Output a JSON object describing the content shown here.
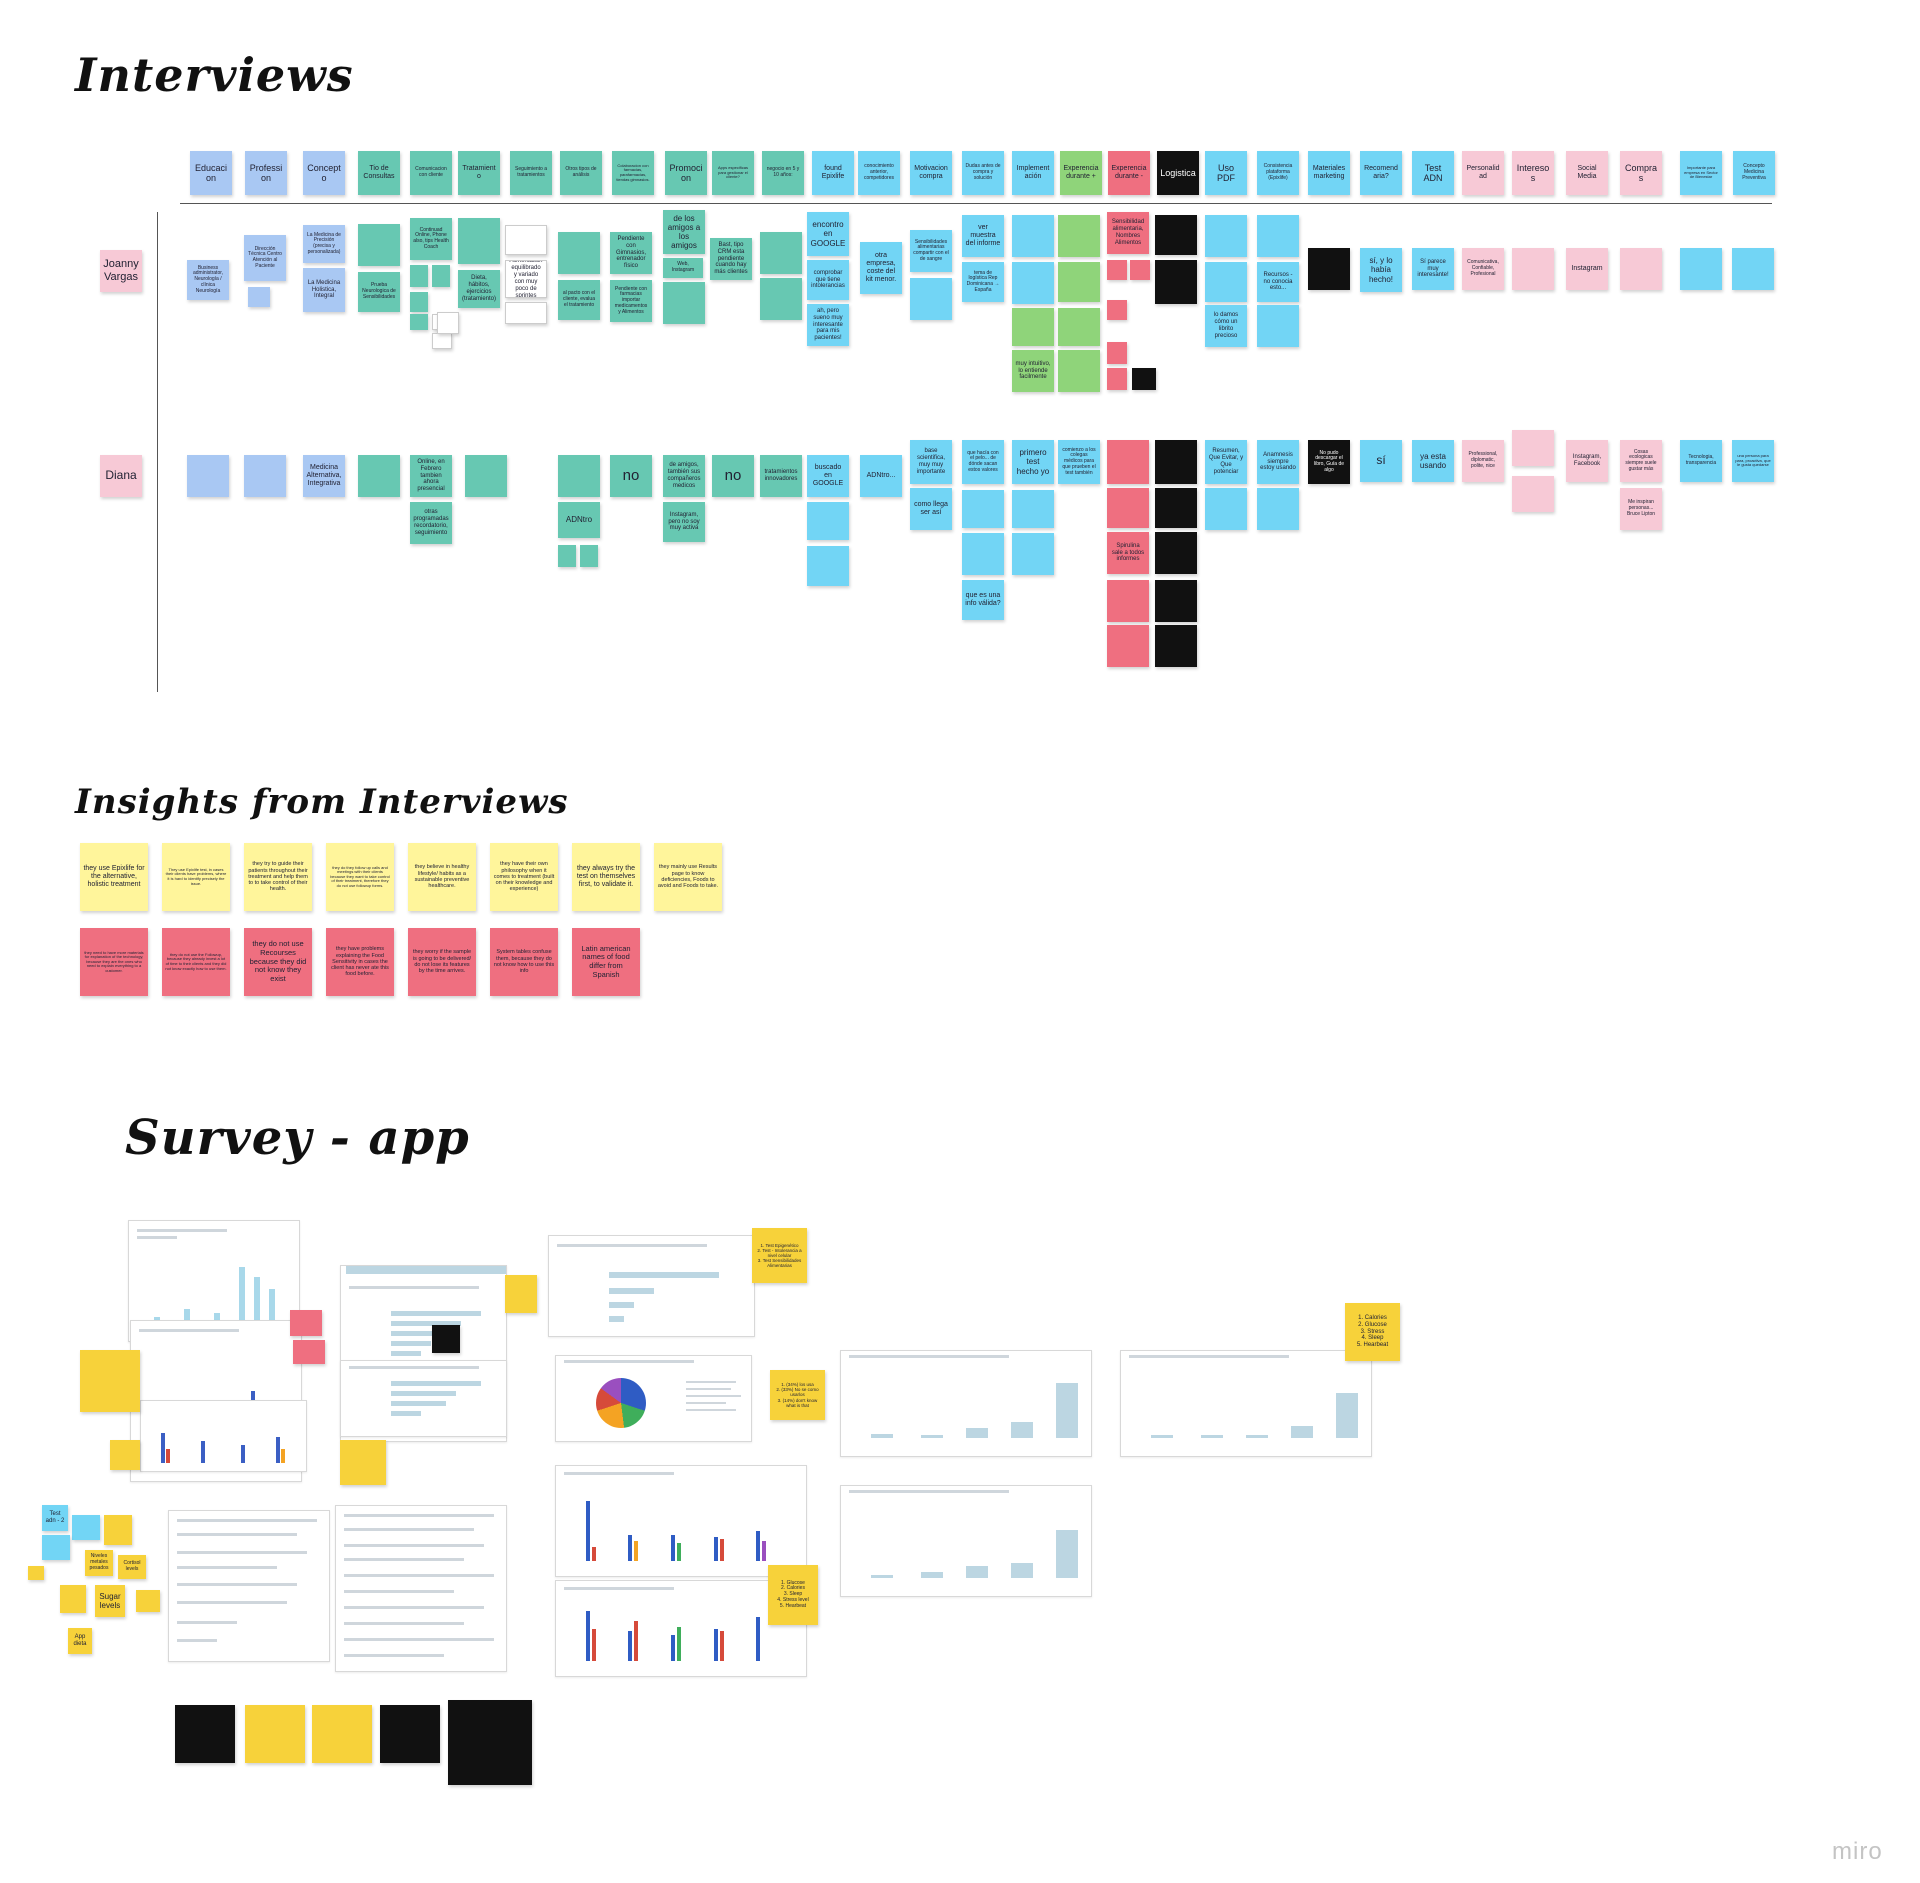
{
  "titles": {
    "interviews": "Interviews",
    "insights": "Insights from Interviews",
    "survey": "Survey - app"
  },
  "headers": [
    "Educacion",
    "Profession",
    "Concepto",
    "Tio de Consultas",
    "Comunicacion con cliente",
    "Tratamiento",
    "Seguimiento a tratamientos",
    "Otros tipos de análisis",
    "Colaboracion con farmacias, parafarmacias, tiendas gimnasios.",
    "Promocion",
    "Apps especificas para gestionar el cliente?",
    "negocio en 5 y 10 años:",
    "found Epixlife",
    "conocimiento anterior, competidores",
    "Motivacion compra",
    "Dudas antes de compra y solución",
    "Implementación",
    "Experencia durante +",
    "Experencia durante -",
    "Logistica",
    "Uso PDF",
    "Consistencia plataforma (Epixlife)",
    "Materiales marketing",
    "Recomendaria?",
    "Test ADN",
    "Personalidad",
    "Interesos",
    "Social Media",
    "Compras",
    "Importante para empresa en Sector de Bienestar",
    "Concepto Medicina Preventiva"
  ],
  "people": [
    "Joanny Vargas",
    "Diana"
  ],
  "joanny_notes": {
    "educacion": "Business administrator, Neurología / clínica Neurología",
    "profession": "Dirección Técnica Centro Atención al Paciente",
    "concepto_1": "La Medicina de Precisión (precisa y personalizada)",
    "concepto_2": "La Medicina Holistica, Integral",
    "consultas": "Prueba Neurologica de Sensibilidades",
    "comunicacion": "Continuad Online, Phone also, tips Health Coach",
    "tratamiento": "Dieta, hábitos, ejercicios (tratamiento)",
    "seguimiento": "Alimentation equilibrado y variado con muy poco de sprintes",
    "otros": "al pacto con el cliente, evalua el tratamiento",
    "colaboracion": "Pendiente con Gimnasios, entrenador físico",
    "colaboracion_2": "Pendiente con farmacias importar medicamentos y Alimentos",
    "promocion": "de los amigos a los amigos",
    "promocion_2": "Web, Instagram",
    "apps": "Bast, tipo CRM esta pendiente cuando hay más clientes",
    "found": "encontro en GOOGLE",
    "found_2": "comprobar que tiene intolerancias",
    "found_3": "ah, pero sueno muy interesante para mis pacientes!",
    "conocimiento": "otra empresa, coste del kit menor.",
    "motivacion": "Sensibilidades alimentarias compartir con el de sangre",
    "dudas": "ver muestra del informe",
    "dudas_2": "tema de logística Rep Dominicana → España",
    "exp_plus": "muy intuitivo, lo entiende facilmente",
    "exp_minus": "Sensibilidad alimentaria, Nombres Alimentos",
    "uso_pdf": "lo damos cómo un librito precioso",
    "uso_pdf_2": "Recursos - no conocia esto...",
    "recomendaria": "sí, y lo había hecho!",
    "test_adn": "Sí parece muy interesante!",
    "personalidad": "Comunicativa, Confiable, Profesional",
    "social": "Instagram"
  },
  "diana_notes": {
    "comunicacion": "Online, en Febrero tambien ahora presencial",
    "comunicacion_2": "otras programadas recordatorio, seguimiento",
    "otros": "ADNtro",
    "colaboracion": "no",
    "promocion": "de amigos, también sus compañeros medicos",
    "promocion_2": "Instagram, pero no soy muy activa",
    "apps": "no",
    "negocio": "tratamientos innovadores",
    "found": "buscado en GOOGLE",
    "conocimiento": "ADNtro...",
    "motivacion": "base scientifica, muy muy importante",
    "motivacion_2": "como llega ser así",
    "dudas": "que hacía con el pelo... de dónde sacan estos valores",
    "dudas_2": "que es una info válida?",
    "implementacion": "primero test hecho yo",
    "exp_plus": "comienzo a los colegas médicos para que prueben el test también",
    "exp_minus": "Spirulina sale a todos informes",
    "uso_pdf": "Resumen, Que Evitar, y Que potenciar",
    "consistencia": "Anamnesis siempre estoy usando",
    "materiales": "No pudo descargar el libro, Guía de algo",
    "recomendaria": "sí",
    "test_adn": "ya esta usando",
    "personalidad": "Professional, diplomatic, polite, nice",
    "social": "Instagram, Facebook",
    "compras": "Cosas ecologicas siempre suele gustar más",
    "compras_2": "Me inspiran personas... Bruce Lipton",
    "importante": "Tecnologia, transparencia",
    "concepto": "una persona para para, proactiva, que le gusta quedarse"
  },
  "insights_positive": [
    "they use Epixlife for the alternative, holistic treatment",
    "They use Epixlife test, in cases their clients have problems, where it is hard to identify precisely the issue.",
    "they try to guide their patients throughout their treatment and help them to to take control of their health.",
    "they do they follow up calls and meetings with their clients because they want to take control of their treatment, therefore they do not use followup forms.",
    "they believe in healthy lifestyle/ habits as a sustainable preventive healthcare.",
    "they have their own philosophy when it comes to treatment (built on their knowledge and experience)",
    "they always try the test on themselves first, to validate it.",
    "they mainly use Results page to know deficiencies, Foods to avoid and Foods to take."
  ],
  "insights_negative": [
    "they need to have more materials for explanation of the technology, because they are the ones who need to explain everything to a customer.",
    "they do not use the Followup, because they already invest a lot of time to their clients and they did not know exactly how to use them.",
    "they do not use Recourses because they did not know they exist",
    "they have problems explaining the Food Sensitivity in cases the client has never ate this food before.",
    "they worry if the sample is going to be delivered/ do not lose its features by the time arrives.",
    "System tables confuse them, because they do not know how to use this info",
    "Latin american names of food differ from Spanish"
  ],
  "survey_notes": {
    "note_1": "1. Test Epigenético\n2. Test - Intolerancia a nivel celular\n3. Test Sensibilidades Alimentarias",
    "note_2": "1. (34%) los usa\n2. (33%) No se como usarlos\n3. (14%) don't know what is that",
    "note_3": "1. Calories\n2. Glucose\n3. Stress\n4. Sleep\n5. Hearbeat",
    "note_4": "1. Glucose\n2. Calories\n3. Sleep\n4. Stress level\n5. Hearbeat",
    "sugar": "Sugar levels",
    "app": "App dieta",
    "test": "Test adn - 2",
    "niveles": "Niveles metales pesados",
    "cortisol": "Cortisol levels"
  },
  "watermark": "miro",
  "colors": {
    "blue": "#72d5f5",
    "teal": "#67c8b2",
    "green": "#8fd47a",
    "red": "#ef6f80",
    "pink": "#f7c9d6",
    "black": "#111111",
    "yellow": "#fff59b"
  }
}
